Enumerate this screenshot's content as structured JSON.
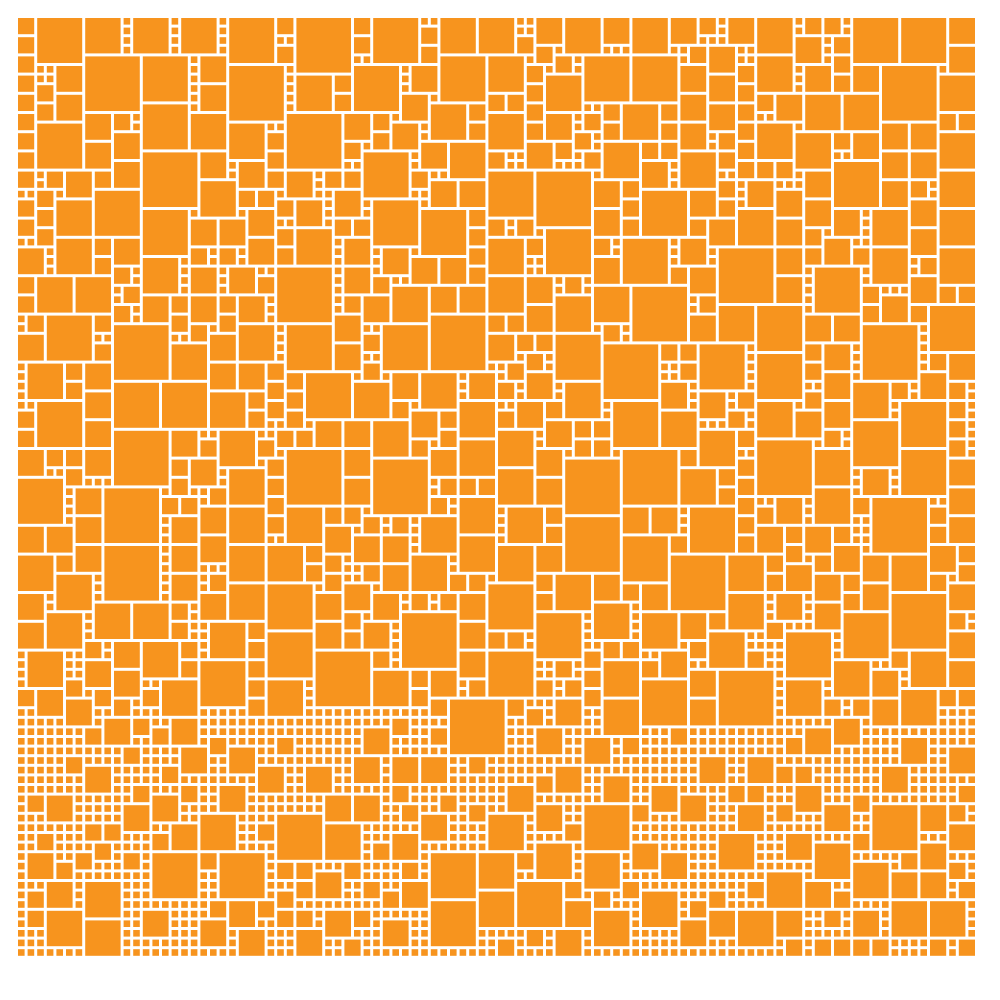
{
  "artwork": {
    "fill_color": "#F7941E",
    "background_color": "#FFFFFF",
    "shape": "square-tile-mosaic",
    "tile_size_classes": [
      "small",
      "medium",
      "large",
      "extra-large"
    ]
  }
}
